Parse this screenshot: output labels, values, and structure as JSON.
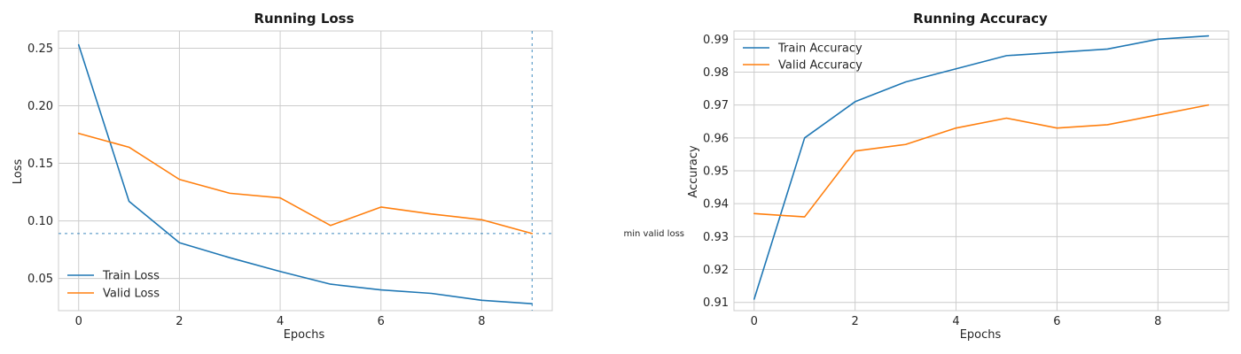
{
  "colors": {
    "train": "#1f77b4",
    "valid": "#ff7f0e",
    "grid": "#cccccc"
  },
  "chart_data": [
    {
      "type": "line",
      "title": "Running Loss",
      "xlabel": "Epochs",
      "ylabel": "Loss",
      "x": [
        0,
        1,
        2,
        3,
        4,
        5,
        6,
        7,
        8,
        9
      ],
      "xlim": [
        -0.4,
        9.4
      ],
      "ylim": [
        0.022,
        0.265
      ],
      "xticks": [
        0,
        2,
        4,
        6,
        8
      ],
      "yticks": [
        0.05,
        0.1,
        0.15,
        0.2,
        0.25
      ],
      "ytick_labels": [
        "0.05",
        "0.10",
        "0.15",
        "0.20",
        "0.25"
      ],
      "grid": true,
      "legend": "lower-left",
      "series": [
        {
          "name": "Train Loss",
          "color": "#1f77b4",
          "values": [
            0.253,
            0.117,
            0.081,
            0.068,
            0.056,
            0.045,
            0.04,
            0.037,
            0.031,
            0.028
          ]
        },
        {
          "name": "Valid Loss",
          "color": "#ff7f0e",
          "values": [
            0.176,
            0.164,
            0.136,
            0.124,
            0.12,
            0.096,
            0.112,
            0.106,
            0.101,
            0.089
          ]
        }
      ],
      "annotations": {
        "hline": {
          "y": 0.089,
          "label": "min valid loss"
        },
        "vline": {
          "x": 9
        }
      }
    },
    {
      "type": "line",
      "title": "Running Accuracy",
      "xlabel": "Epochs",
      "ylabel": "Accuracy",
      "x": [
        0,
        1,
        2,
        3,
        4,
        5,
        6,
        7,
        8,
        9
      ],
      "xlim": [
        -0.4,
        9.4
      ],
      "ylim": [
        0.9075,
        0.9925
      ],
      "xticks": [
        0,
        2,
        4,
        6,
        8
      ],
      "yticks": [
        0.91,
        0.92,
        0.93,
        0.94,
        0.95,
        0.96,
        0.97,
        0.98,
        0.99
      ],
      "ytick_labels": [
        "0.91",
        "0.92",
        "0.93",
        "0.94",
        "0.95",
        "0.96",
        "0.97",
        "0.98",
        "0.99"
      ],
      "grid": true,
      "legend": "top-left",
      "series": [
        {
          "name": "Train Accuracy",
          "color": "#1f77b4",
          "values": [
            0.911,
            0.96,
            0.971,
            0.977,
            0.981,
            0.985,
            0.986,
            0.987,
            0.99,
            0.991
          ]
        },
        {
          "name": "Valid Accuracy",
          "color": "#ff7f0e",
          "values": [
            0.937,
            0.936,
            0.956,
            0.958,
            0.963,
            0.966,
            0.963,
            0.964,
            0.967,
            0.97
          ]
        }
      ]
    }
  ]
}
